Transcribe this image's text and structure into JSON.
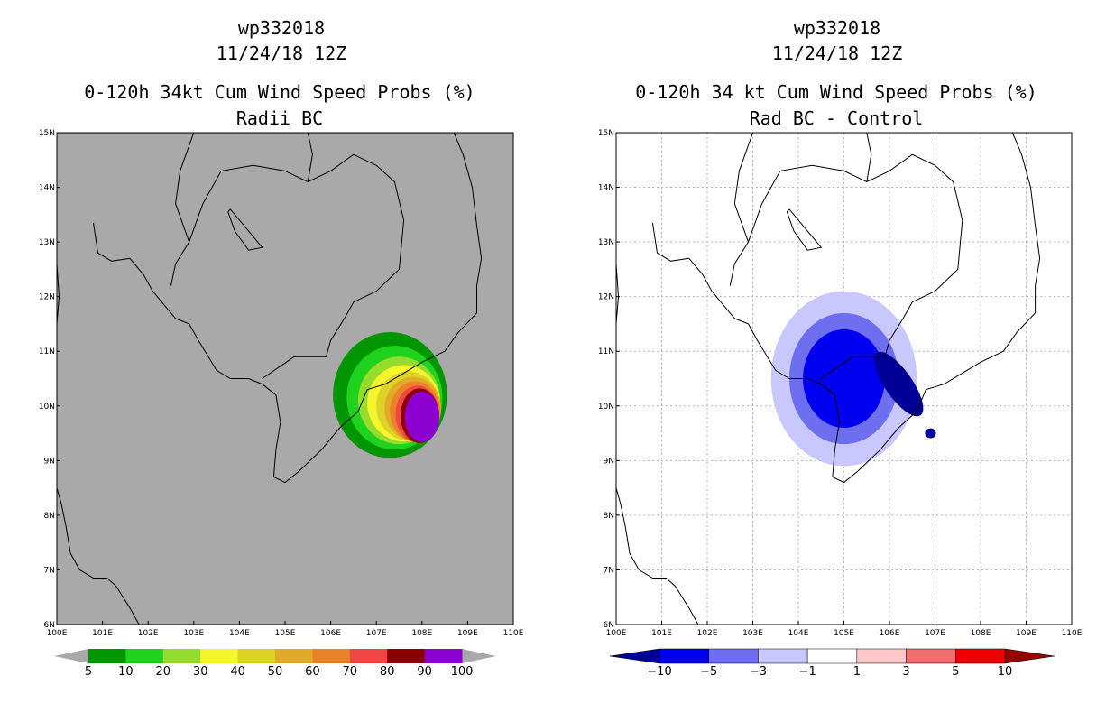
{
  "chart_data": [
    {
      "type": "heatmap",
      "storm_id": "wp332018",
      "date": "11/24/18 12Z",
      "title": "0-120h 34kt Cum Wind Speed Probs (%)",
      "subtitle": "Radii BC",
      "x_ticks": [
        "100E",
        "101E",
        "102E",
        "103E",
        "104E",
        "105E",
        "106E",
        "107E",
        "108E",
        "109E",
        "110E"
      ],
      "y_ticks": [
        "6N",
        "7N",
        "8N",
        "9N",
        "10N",
        "11N",
        "12N",
        "13N",
        "14N",
        "15N"
      ],
      "xlim": [
        100,
        110
      ],
      "ylim": [
        6,
        15
      ],
      "background_color": "#a9a9a9",
      "colorbar": {
        "labels": [
          "5",
          "10",
          "20",
          "30",
          "40",
          "50",
          "60",
          "70",
          "80",
          "90",
          "100"
        ],
        "colors": [
          "#009600",
          "#1ed21e",
          "#96dc2d",
          "#f5f52d",
          "#dcd228",
          "#e1aa28",
          "#eb8228",
          "#f04646",
          "#8c0000",
          "#8c00d2"
        ]
      },
      "contours": [
        {
          "level": 5,
          "color": "#009600",
          "center": [
            107.3,
            10.2
          ],
          "radius": [
            1.25,
            1.15
          ],
          "rot": 0
        },
        {
          "level": 10,
          "color": "#1ed21e",
          "center": [
            107.4,
            10.15
          ],
          "radius": [
            1.05,
            0.95
          ],
          "rot": 0
        },
        {
          "level": 20,
          "color": "#96dc2d",
          "center": [
            107.5,
            10.1
          ],
          "radius": [
            0.9,
            0.8
          ],
          "rot": 0
        },
        {
          "level": 30,
          "color": "#f5f52d",
          "center": [
            107.6,
            10.05
          ],
          "radius": [
            0.8,
            0.7
          ],
          "rot": 0
        },
        {
          "level": 40,
          "color": "#dcd228",
          "center": [
            107.7,
            10.0
          ],
          "radius": [
            0.7,
            0.63
          ],
          "rot": 0
        },
        {
          "level": 50,
          "color": "#e1aa28",
          "center": [
            107.8,
            9.95
          ],
          "radius": [
            0.62,
            0.58
          ],
          "rot": 0
        },
        {
          "level": 60,
          "color": "#eb8228",
          "center": [
            107.85,
            9.9
          ],
          "radius": [
            0.55,
            0.55
          ],
          "rot": 0
        },
        {
          "level": 70,
          "color": "#f04646",
          "center": [
            107.9,
            9.85
          ],
          "radius": [
            0.48,
            0.52
          ],
          "rot": 0
        },
        {
          "level": 80,
          "color": "#8c0000",
          "center": [
            107.95,
            9.82
          ],
          "radius": [
            0.42,
            0.5
          ],
          "rot": 0
        },
        {
          "level": 90,
          "color": "#8c00d2",
          "center": [
            108.0,
            9.8
          ],
          "radius": [
            0.38,
            0.46
          ],
          "rot": 0
        }
      ]
    },
    {
      "type": "heatmap",
      "storm_id": "wp332018",
      "date": "11/24/18 12Z",
      "title": "0-120h 34 kt Cum Wind Speed Probs (%)",
      "subtitle": "Rad BC - Control",
      "x_ticks": [
        "100E",
        "101E",
        "102E",
        "103E",
        "104E",
        "105E",
        "106E",
        "107E",
        "108E",
        "109E",
        "110E"
      ],
      "y_ticks": [
        "6N",
        "7N",
        "8N",
        "9N",
        "10N",
        "11N",
        "12N",
        "13N",
        "14N",
        "15N"
      ],
      "xlim": [
        100,
        110
      ],
      "ylim": [
        6,
        15
      ],
      "background_color": "#ffffff",
      "grid": true,
      "colorbar": {
        "labels": [
          "-10",
          "-5",
          "-3",
          "-1",
          "1",
          "3",
          "5",
          "10"
        ],
        "colors": [
          "#000096",
          "#0000f0",
          "#6e6ef0",
          "#c8c8ff",
          "#ffffff",
          "#ffc8c8",
          "#f06e6e",
          "#f00000",
          "#960000"
        ]
      },
      "contours": [
        {
          "level": -1,
          "color": "#c8c8ff",
          "center": [
            105.0,
            10.5
          ],
          "radius": [
            1.6,
            1.6
          ],
          "rot": 0
        },
        {
          "level": -3,
          "color": "#6e6ef0",
          "center": [
            105.0,
            10.5
          ],
          "radius": [
            1.2,
            1.2
          ],
          "rot": 0
        },
        {
          "level": -5,
          "color": "#0000f0",
          "center": [
            105.0,
            10.5
          ],
          "radius": [
            0.9,
            0.9
          ],
          "rot": 0
        },
        {
          "level": -10,
          "color": "#000096",
          "center": [
            106.2,
            10.4
          ],
          "radius": [
            0.3,
            0.7
          ],
          "rot": -35
        },
        {
          "level": -10,
          "color": "#000096",
          "center": [
            106.9,
            9.5
          ],
          "radius": [
            0.12,
            0.09
          ],
          "rot": 0
        }
      ]
    }
  ]
}
